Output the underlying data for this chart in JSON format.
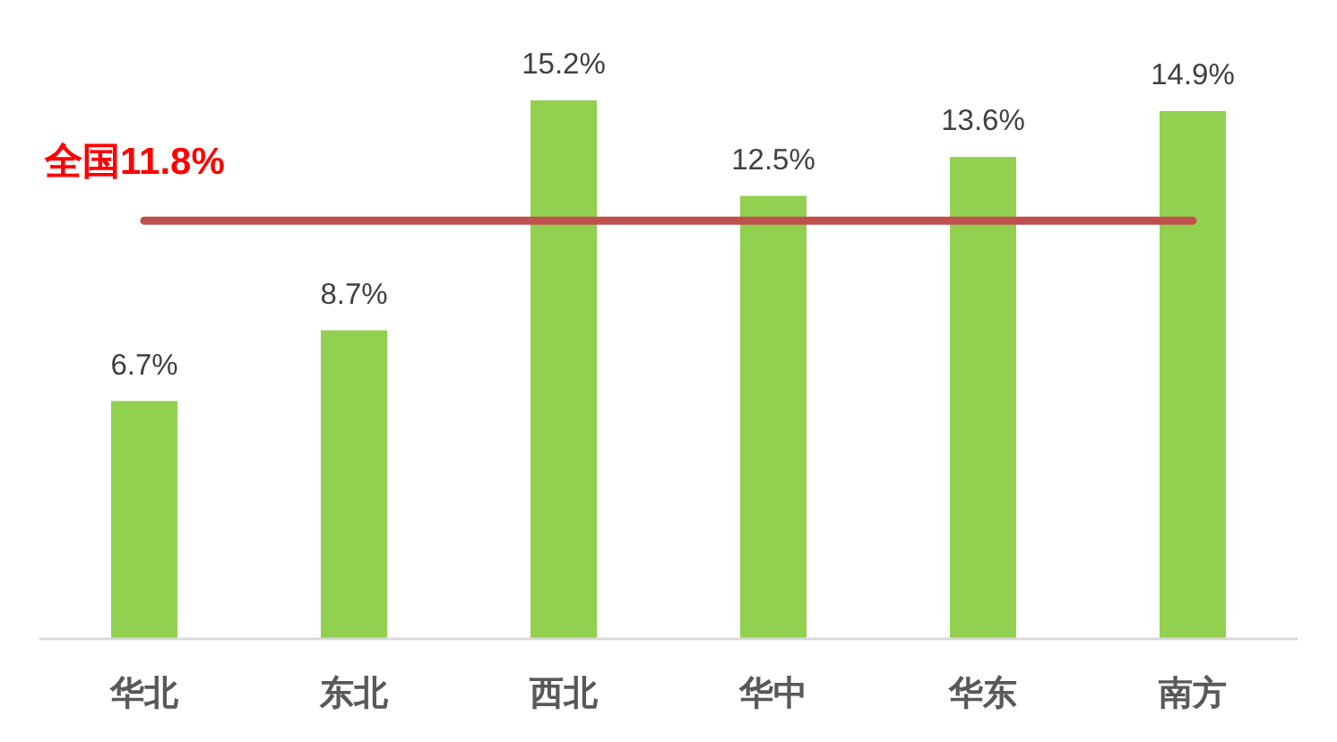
{
  "chart_data": {
    "type": "bar",
    "categories": [
      "华北",
      "东北",
      "西北",
      "华中",
      "华东",
      "南方"
    ],
    "values": [
      6.7,
      8.7,
      15.2,
      12.5,
      13.6,
      14.9
    ],
    "value_labels": [
      "6.7%",
      "8.7%",
      "15.2%",
      "12.5%",
      "13.6%",
      "14.9%"
    ],
    "color": "#92d050",
    "tick_labels": "x",
    "ref_lines": [
      {
        "axis": "y",
        "value": 11.8,
        "label": "全国11.8%",
        "color": "#c0504d",
        "line_style": "solid"
      }
    ]
  }
}
